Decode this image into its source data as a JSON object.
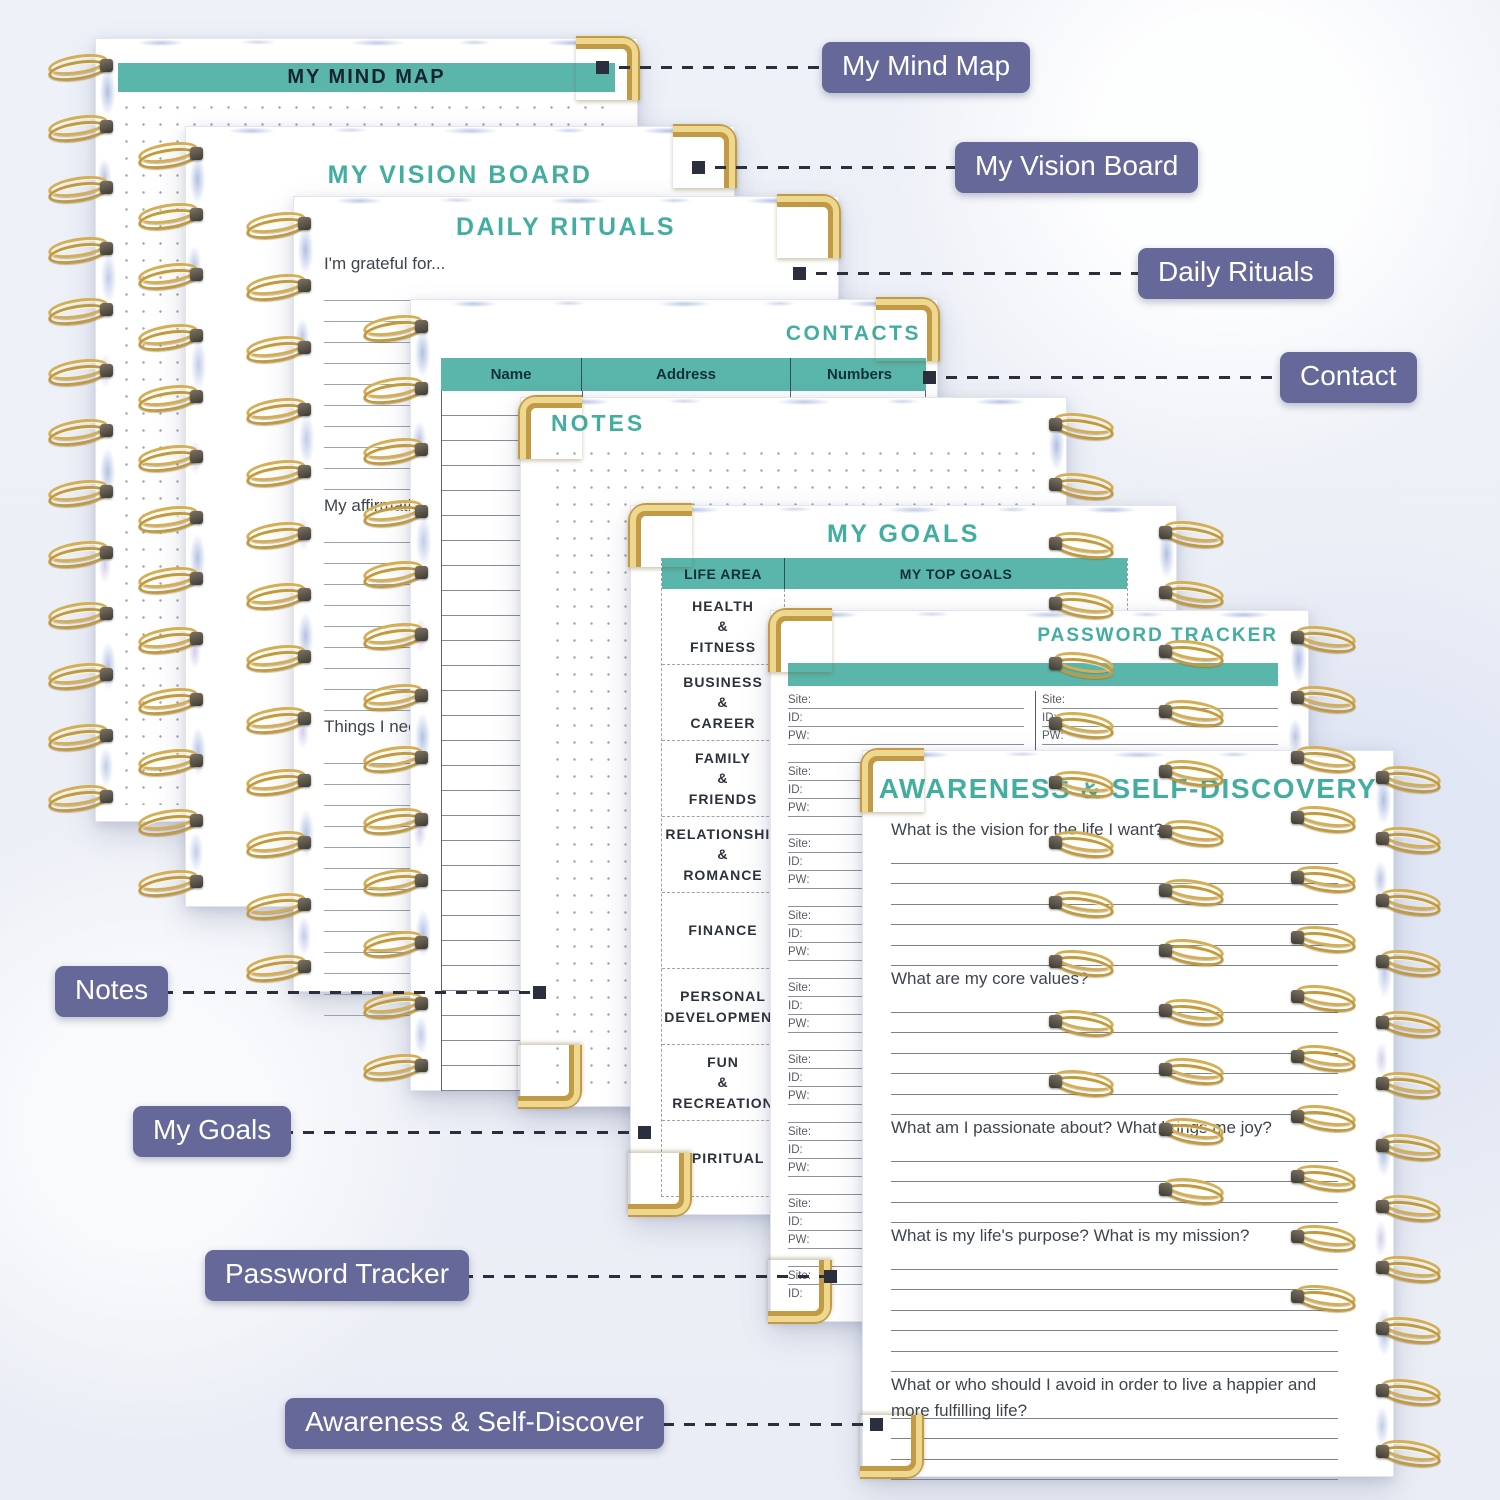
{
  "colors": {
    "teal_bar": "#5ab5ab",
    "teal_title_text": "#43aea0",
    "callout_badge": "#656899",
    "dash_line": "#2b2e3c",
    "gold_corner": "#c29a45",
    "page": "#ffffff"
  },
  "callouts": {
    "mind_map": "My Mind Map",
    "vision_board": "My Vision Board",
    "daily_rituals": "Daily Rituals",
    "contact": "Contact",
    "notes": "Notes",
    "my_goals": "My Goals",
    "password_tracker": "Password Tracker",
    "awareness": "Awareness & Self-Discover"
  },
  "pages": {
    "mind_map": {
      "title": "MY MIND MAP"
    },
    "vision_board": {
      "title": "MY VISION BOARD"
    },
    "daily_rituals": {
      "title": "DAILY RITUALS",
      "prompt_grateful": "I'm grateful for...",
      "prompt_affirmation": "My affirmation",
      "prompt_things": "Things I need..."
    },
    "contacts": {
      "title": "CONTACTS",
      "columns": [
        "Name",
        "Address",
        "Numbers"
      ]
    },
    "notes": {
      "title": "NOTES"
    },
    "goals": {
      "title": "MY GOALS",
      "col_life_area": "LIFE AREA",
      "col_top_goals": "MY TOP GOALS",
      "life_areas": [
        "HEALTH\n&\nFITNESS",
        "BUSINESS\n&\nCAREER",
        "FAMILY\n&\nFRIENDS",
        "RELATIONSHIP\n&\nROMANCE",
        "FINANCE",
        "PERSONAL\nDEVELOPMENT",
        "FUN\n&\nRECREATION",
        "SPIRITUAL"
      ]
    },
    "password": {
      "title": "PASSWORD TRACKER",
      "field_labels": [
        "Site:",
        "ID:",
        "PW:"
      ]
    },
    "awareness": {
      "title": "AWARENESS & SELF-DISCOVERY",
      "questions": [
        "What is the vision for the life I want?",
        "What are my core values?",
        "What am I passionate about? What brings me joy?",
        "What is my life's purpose? What is my mission?",
        "What or who should I avoid in order to live a happier and more fulfilling life?"
      ]
    }
  }
}
